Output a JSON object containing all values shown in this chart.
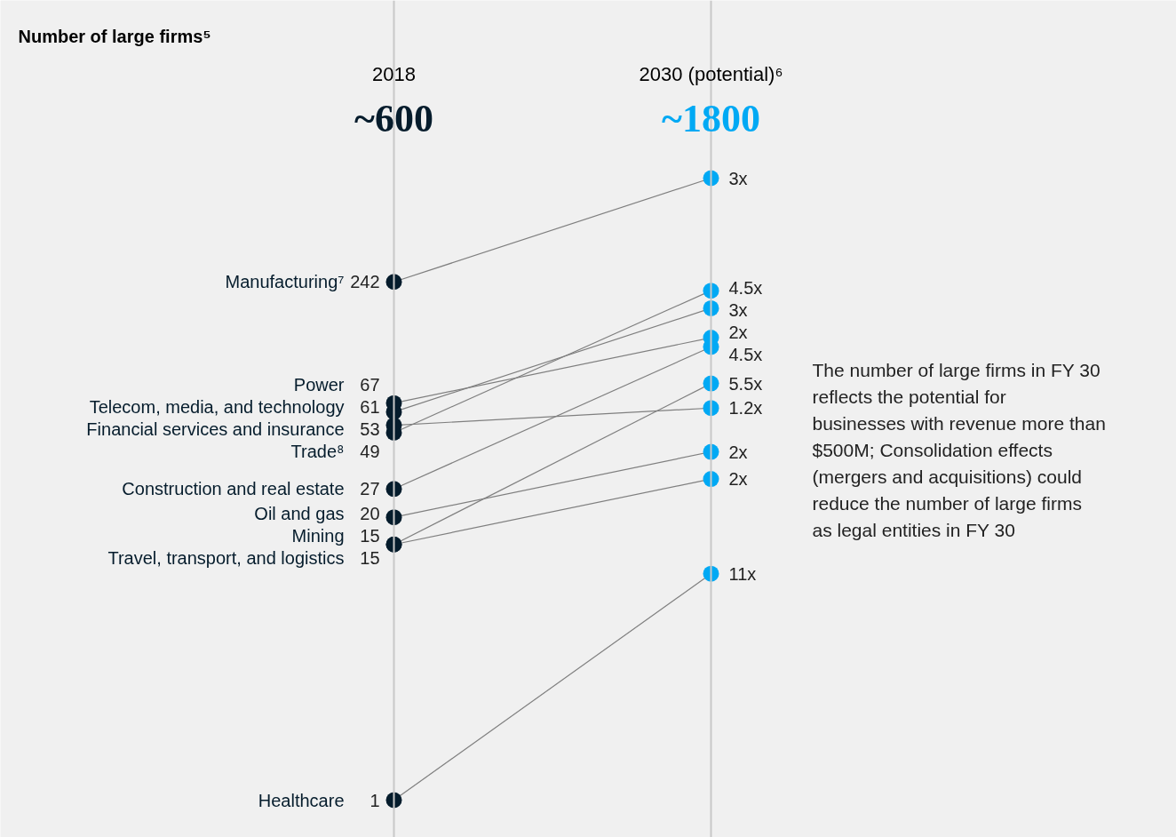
{
  "chart_data": {
    "type": "line",
    "title": "Number of large firms⁵",
    "categories": [
      "2018",
      "2030 (potential)⁶"
    ],
    "totals": [
      "~600",
      "~1800"
    ],
    "log": true,
    "grid": "x",
    "marker": "circle",
    "series": [
      {
        "name": "Manufacturing⁷",
        "color": "#7f7f7f",
        "colors": [
          "#051c2c",
          "#00a9f4"
        ],
        "values": [
          242,
          726
        ],
        "value_labels": [
          "242",
          null
        ]
      },
      {
        "name": "Power",
        "color": "#7f7f7f",
        "colors": [
          "#051c2c",
          "#00a9f4"
        ],
        "values": [
          67,
          134
        ],
        "value_labels": [
          "67",
          null
        ]
      },
      {
        "name": "Telecom, media, and technology",
        "color": "#7f7f7f",
        "colors": [
          "#051c2c",
          "#00a9f4"
        ],
        "values": [
          61,
          183
        ],
        "value_labels": [
          "61",
          null
        ]
      },
      {
        "name": "Financial services and insurance",
        "color": "#7f7f7f",
        "colors": [
          "#051c2c",
          "#00a9f4"
        ],
        "values": [
          53,
          63.6
        ],
        "value_labels": [
          "53",
          null
        ]
      },
      {
        "name": "Trade⁸",
        "color": "#7f7f7f",
        "colors": [
          "#051c2c",
          "#00a9f4"
        ],
        "values": [
          49,
          220.5
        ],
        "value_labels": [
          "49",
          null
        ]
      },
      {
        "name": "Construction and real estate",
        "color": "#7f7f7f",
        "colors": [
          "#051c2c",
          "#00a9f4"
        ],
        "values": [
          27,
          121.5
        ],
        "value_labels": [
          "27",
          null
        ]
      },
      {
        "name": "Oil and gas",
        "color": "#7f7f7f",
        "colors": [
          "#051c2c",
          "#00a9f4"
        ],
        "values": [
          20,
          40
        ],
        "value_labels": [
          "20",
          null
        ]
      },
      {
        "name": "Mining",
        "color": "#7f7f7f",
        "colors": [
          "#051c2c",
          "#00a9f4"
        ],
        "values": [
          15,
          30
        ],
        "value_labels": [
          "15",
          null
        ]
      },
      {
        "name": "Travel, transport, and logistics",
        "color": "#7f7f7f",
        "colors": [
          "#051c2c",
          "#00a9f4"
        ],
        "values": [
          15,
          82.5
        ],
        "value_labels": [
          "15",
          null
        ]
      },
      {
        "name": "Healthcare",
        "color": "#7f7f7f",
        "colors": [
          "#051c2c",
          "#00a9f4"
        ],
        "values": [
          1,
          11
        ],
        "value_labels": [
          "1",
          null
        ]
      }
    ],
    "annotations": [
      {
        "text": "3x",
        "x": "2030 (potential)⁶",
        "y": 726
      },
      {
        "text": "2x",
        "x": "2030 (potential)⁶",
        "y": 134
      },
      {
        "text": "3x",
        "x": "2030 (potential)⁶",
        "y": 183
      },
      {
        "text": "1.2x",
        "x": "2030 (potential)⁶",
        "y": 63.6
      },
      {
        "text": "4.5x",
        "x": "2030 (potential)⁶",
        "y": 220.5
      },
      {
        "text": "4.5x",
        "x": "2030 (potential)⁶",
        "y": 121.5
      },
      {
        "text": "2x",
        "x": "2030 (potential)⁶",
        "y": 40
      },
      {
        "text": "2x",
        "x": "2030 (potential)⁶",
        "y": 30
      },
      {
        "text": "5.5x",
        "x": "2030 (potential)⁶",
        "y": 82.5
      },
      {
        "text": "11x",
        "x": "2030 (potential)⁶",
        "y": 11
      },
      "The number of large firms in FY 30 reflects the potential for businesses with revenue more than $500M; Consolidation effects (mergers and acquisitions) could reduce the number of large firms as legal entities in FY 30"
    ]
  }
}
